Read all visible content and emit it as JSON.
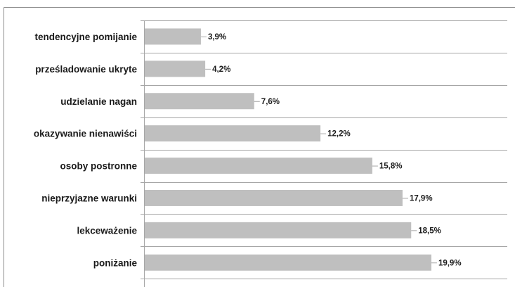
{
  "chart_data": {
    "type": "bar",
    "orientation": "horizontal",
    "title": "",
    "xlabel": "",
    "ylabel": "",
    "categories": [
      "tendencyjne pomijanie",
      "prześladowanie ukryte",
      "udzielanie nagan",
      "okazywanie nienawiści",
      "osoby postronne",
      "nieprzyjazne warunki",
      "lekceważenie",
      "poniżanie"
    ],
    "values": [
      3.9,
      4.2,
      7.6,
      12.2,
      15.8,
      17.9,
      18.5,
      19.9
    ],
    "value_labels": [
      "3,9%",
      "4,2%",
      "7,6%",
      "12,2%",
      "15,8%",
      "17,9%",
      "18,5%",
      "19,9%"
    ],
    "xlim": [
      0,
      25
    ],
    "grid": true,
    "legend": "none",
    "bar_color": "#bfbfbf",
    "grid_color": "#a6a6a6",
    "frame_color": "#8c8c8c"
  }
}
